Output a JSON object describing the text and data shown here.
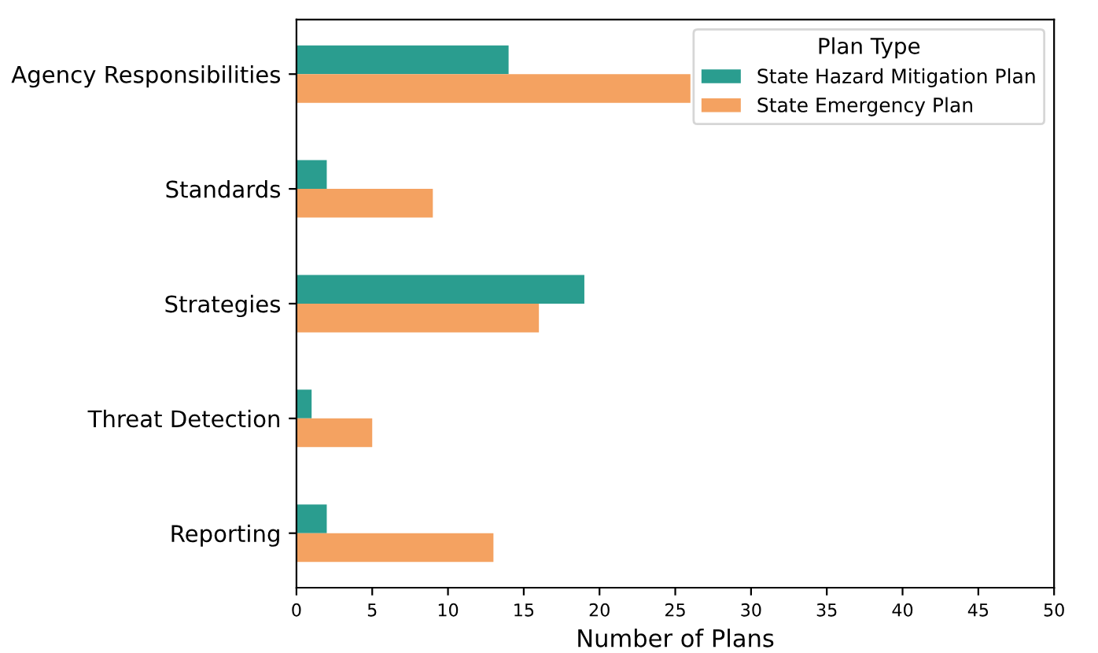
{
  "chart_data": {
    "type": "bar",
    "orientation": "horizontal",
    "xlabel": "Number of Plans",
    "legend_title": "Plan Type",
    "legend": "top right",
    "grid": false,
    "categories": [
      "Agency Responsibilities",
      "Standards",
      "Strategies",
      "Threat Detection",
      "Reporting"
    ],
    "series": [
      {
        "name": "State Hazard Mitigation Plan",
        "color": "#2a9d8f",
        "values": [
          14,
          2,
          19,
          1,
          2
        ]
      },
      {
        "name": "State Emergency Plan",
        "color": "#f4a261",
        "values": [
          26,
          9,
          16,
          5,
          13
        ]
      }
    ],
    "xlim": [
      0,
      50
    ],
    "xticks": [
      0,
      5,
      10,
      15,
      20,
      25,
      30,
      35,
      40,
      45,
      50
    ]
  }
}
